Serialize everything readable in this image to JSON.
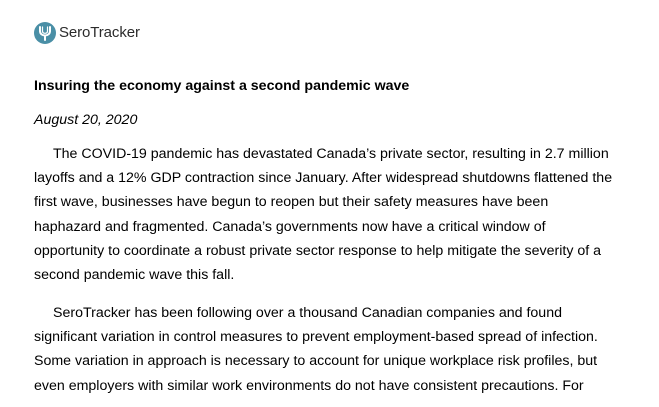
{
  "brand": {
    "name": "SeroTracker",
    "icon": "serotracker-logo-icon",
    "color": "#4a8fa6"
  },
  "article": {
    "title": "Insuring the economy against a second pandemic wave",
    "date": "August 20, 2020",
    "paragraphs": [
      {
        "lines": [
          "The COVID-19 pandemic has devastated Canada’s private sector, resulting in 2.7 million",
          "layoffs and a 12% GDP contraction since January. After widespread shutdowns flattened the",
          "first wave, businesses have begun to reopen but their safety measures have been",
          "haphazard and fragmented. Canada’s governments now have a critical window of",
          "opportunity to coordinate a robust private sector response to help mitigate the severity of a",
          "second pandemic wave this fall."
        ]
      },
      {
        "lines": [
          "SeroTracker has been following over a thousand Canadian companies and found",
          "significant variation in control measures to prevent employment-based spread of infection.",
          "Some variation in approach is necessary to account for unique workplace risk profiles, but",
          "even employers with similar work environments do not have consistent precautions. For"
        ]
      }
    ]
  }
}
